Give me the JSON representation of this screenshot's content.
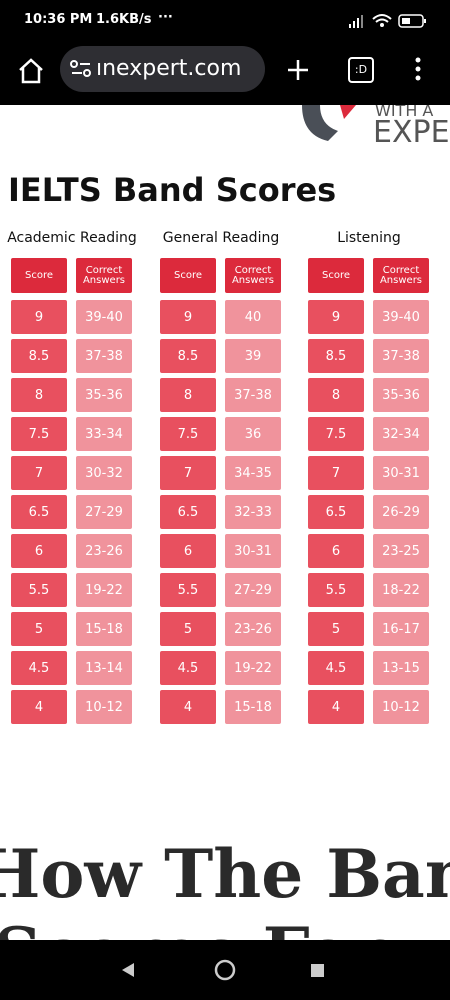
{
  "status_bar": {
    "time": "10:36 PM",
    "speed": "1.6KB/s",
    "more": "···"
  },
  "browser": {
    "url": "ınexpert.com",
    "tab_label": ":D"
  },
  "logo": {
    "line1": "WITH A",
    "line2": "EXPER"
  },
  "page": {
    "title": "IELTS Band Scores",
    "tables": [
      {
        "title": "Academic Reading",
        "headers": [
          "Score",
          "Correct Answers"
        ],
        "rows": [
          [
            "9",
            "39-40"
          ],
          [
            "8.5",
            "37-38"
          ],
          [
            "8",
            "35-36"
          ],
          [
            "7.5",
            "33-34"
          ],
          [
            "7",
            "30-32"
          ],
          [
            "6.5",
            "27-29"
          ],
          [
            "6",
            "23-26"
          ],
          [
            "5.5",
            "19-22"
          ],
          [
            "5",
            "15-18"
          ],
          [
            "4.5",
            "13-14"
          ],
          [
            "4",
            "10-12"
          ]
        ]
      },
      {
        "title": "General Reading",
        "headers": [
          "Score",
          "Correct Answers"
        ],
        "rows": [
          [
            "9",
            "40"
          ],
          [
            "8.5",
            "39"
          ],
          [
            "8",
            "37-38"
          ],
          [
            "7.5",
            "36"
          ],
          [
            "7",
            "34-35"
          ],
          [
            "6.5",
            "32-33"
          ],
          [
            "6",
            "30-31"
          ],
          [
            "5.5",
            "27-29"
          ],
          [
            "5",
            "23-26"
          ],
          [
            "4.5",
            "19-22"
          ],
          [
            "4",
            "15-18"
          ]
        ]
      },
      {
        "title": "Listening",
        "headers": [
          "Score",
          "Correct Answers"
        ],
        "rows": [
          [
            "9",
            "39-40"
          ],
          [
            "8.5",
            "37-38"
          ],
          [
            "8",
            "35-36"
          ],
          [
            "7.5",
            "32-34"
          ],
          [
            "7",
            "30-31"
          ],
          [
            "6.5",
            "26-29"
          ],
          [
            "6",
            "23-25"
          ],
          [
            "5.5",
            "18-22"
          ],
          [
            "5",
            "16-17"
          ],
          [
            "4.5",
            "13-15"
          ],
          [
            "4",
            "10-12"
          ]
        ]
      }
    ],
    "heading_line1": "How The Band",
    "heading_line2": "Scores For"
  }
}
